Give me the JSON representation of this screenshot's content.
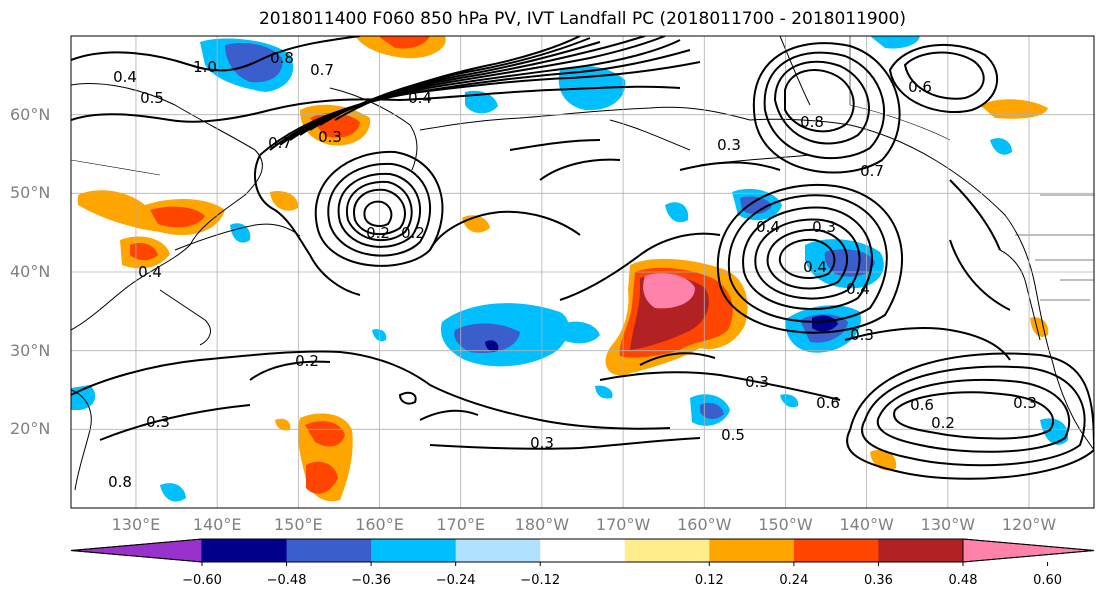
{
  "title": "2018011400 F060 850 hPa PV, IVT Landfall PC (2018011700 - 2018011900)",
  "lat_labels": [
    "60°N",
    "50°N",
    "40°N",
    "30°N",
    "20°N"
  ],
  "lat_values": [
    60,
    50,
    40,
    30,
    20
  ],
  "lon_labels": [
    "130°E",
    "140°E",
    "150°E",
    "160°E",
    "170°E",
    "180°W",
    "170°W",
    "160°W",
    "150°W",
    "140°W",
    "130°W",
    "120°W"
  ],
  "map_extent": {
    "lon_min": 122,
    "lon_max": 248,
    "lat_min": 10,
    "lat_max": 70
  },
  "colorbar": {
    "ticks": [
      "−0.60",
      "−0.48",
      "−0.36",
      "−0.24",
      "−0.12",
      "0.12",
      "0.24",
      "0.36",
      "0.48",
      "0.60"
    ],
    "colors": [
      "#9932cc",
      "#00008b",
      "#3a5fcd",
      "#00bfff",
      "#b0e2ff",
      "#ffffff",
      "#ffec8b",
      "#ffa500",
      "#ff4500",
      "#b22222",
      "#ff82ab"
    ]
  },
  "contour_labels": [
    "0.8",
    "1.0",
    "0.7",
    "0.4",
    "0.5",
    "0.3",
    "0.7",
    "0.4",
    "0.8",
    "0.7",
    "0.3",
    "0.6",
    "0.4",
    "0.3",
    "0.4",
    "0.4",
    "0.3",
    "0.2",
    "0.2",
    "0.2",
    "0.3",
    "0.3",
    "0.3",
    "0.6",
    "0.5",
    "0.6",
    "0.2",
    "0.3",
    "0.8",
    "0.4"
  ]
}
